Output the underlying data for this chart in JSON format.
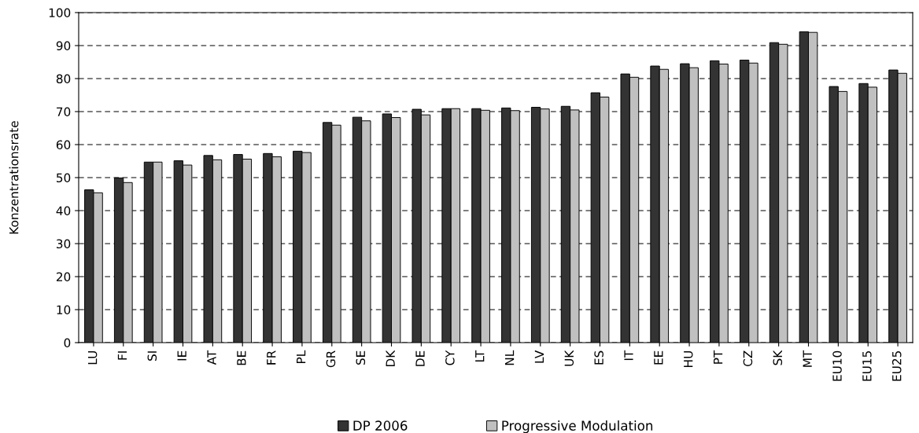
{
  "chart_data": {
    "type": "bar",
    "ylabel": "Konzentrationsrate",
    "categories": [
      "LU",
      "FI",
      "SI",
      "IE",
      "AT",
      "BE",
      "FR",
      "PL",
      "GR",
      "SE",
      "DK",
      "DE",
      "CY",
      "LT",
      "NL",
      "LV",
      "UK",
      "ES",
      "IT",
      "EE",
      "HU",
      "PT",
      "CZ",
      "SK",
      "MT",
      "EU10",
      "EU15",
      "EU25"
    ],
    "series": [
      {
        "name": "DP 2006",
        "color": "#333333",
        "values": [
          46.3,
          49.9,
          54.7,
          55.1,
          56.7,
          57.0,
          57.3,
          58.0,
          66.7,
          68.3,
          69.3,
          70.7,
          70.9,
          70.9,
          71.1,
          71.3,
          71.6,
          75.7,
          81.4,
          83.8,
          84.5,
          85.4,
          85.6,
          90.9,
          94.2,
          77.6,
          78.5,
          82.6
        ]
      },
      {
        "name": "Progressive Modulation",
        "color": "#c0c0c0",
        "values": [
          45.4,
          48.5,
          54.7,
          53.8,
          55.4,
          55.6,
          56.3,
          57.6,
          65.9,
          67.2,
          68.2,
          69.0,
          70.9,
          70.4,
          70.3,
          70.8,
          70.5,
          74.4,
          80.4,
          82.8,
          83.3,
          84.4,
          84.7,
          90.4,
          94.0,
          76.1,
          77.4,
          81.6
        ]
      }
    ],
    "ylim": [
      0,
      100
    ],
    "yticks": [
      0,
      10,
      20,
      30,
      40,
      50,
      60,
      70,
      80,
      90,
      100
    ],
    "grid": "y",
    "legend": "bottom"
  }
}
